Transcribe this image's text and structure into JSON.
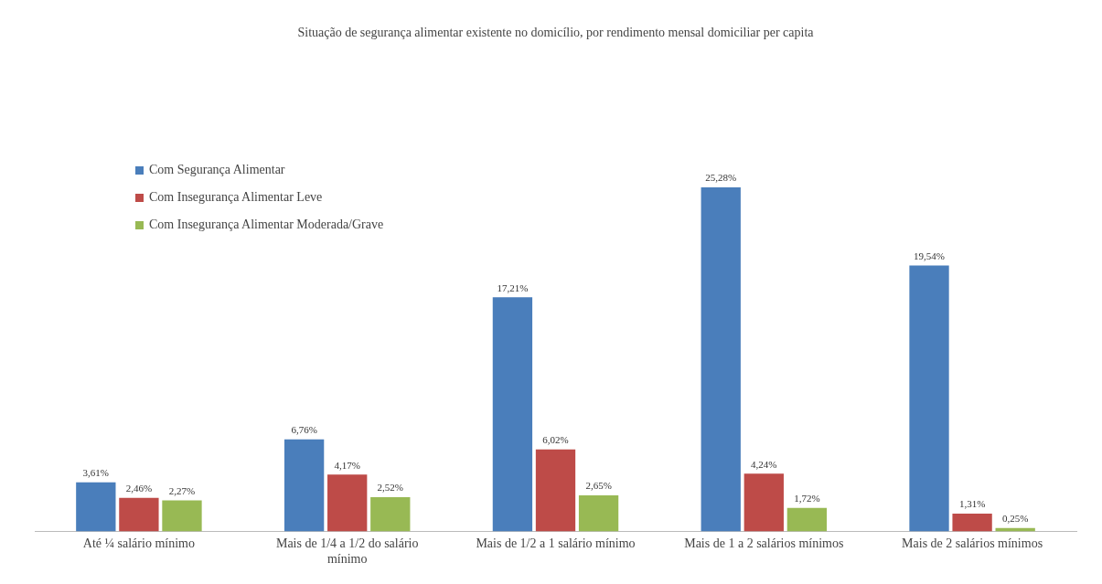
{
  "chart_data": {
    "type": "bar",
    "title": "Situação de segurança alimentar existente no domicílio, por rendimento mensal domiciliar per capita",
    "categories": [
      "Até ¼ salário mínimo",
      "Mais de 1/4 a 1/2 do salário mínimo",
      "Mais de 1/2 a 1 salário mínimo",
      "Mais de 1 a 2 salários mínimos",
      "Mais de 2 salários mínimos"
    ],
    "series": [
      {
        "name": "Com Segurança Alimentar",
        "color": "#4a7ebb",
        "values": [
          3.61,
          6.76,
          17.21,
          25.28,
          19.54
        ],
        "value_labels": [
          "3,61%",
          "6,76%",
          "17,21%",
          "25,28%",
          "19,54%"
        ]
      },
      {
        "name": "Com Insegurança Alimentar Leve",
        "color": "#be4b48",
        "values": [
          2.46,
          4.17,
          6.02,
          4.24,
          1.31
        ],
        "value_labels": [
          "2,46%",
          "4,17%",
          "6,02%",
          "4,24%",
          "1,31%"
        ]
      },
      {
        "name": "Com Insegurança Alimentar Moderada/Grave",
        "color": "#98b954",
        "values": [
          2.27,
          2.52,
          2.65,
          1.72,
          0.25
        ],
        "value_labels": [
          "2,27%",
          "2,52%",
          "2,65%",
          "1,72%",
          "0,25%"
        ]
      }
    ],
    "legend": "top left",
    "grid": false
  }
}
